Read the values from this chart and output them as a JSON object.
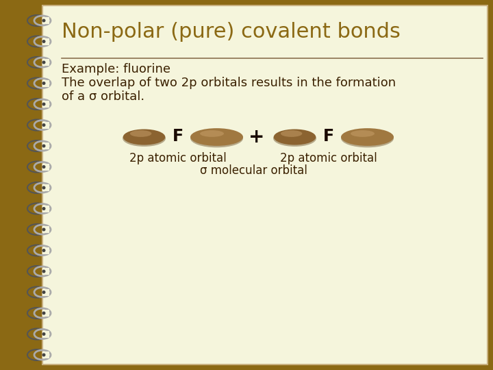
{
  "background_outer": "#8B6914",
  "background_inner": "#F5F5DC",
  "title_text": "Non-polar (pure) covalent bonds",
  "title_color": "#8B6914",
  "title_fontsize": 22,
  "body_color": "#3a2000",
  "line1": "Example: fluorine",
  "line2": "The overlap of two 2p orbitals results in the formation",
  "line3": "of a σ orbital.",
  "label_left": "2p atomic orbital",
  "label_right": "2p atomic orbital",
  "label_bottom": "σ molecular orbital",
  "orbital_color_dark": "#8B6330",
  "orbital_color_mid": "#A07840",
  "orbital_color_light": "#C8A06A",
  "F_label_color": "#1a0a00",
  "plus_color": "#1a0a00",
  "separator_color": "#8B7050",
  "body_fontsize": 13,
  "label_fontsize": 12,
  "spiral_wire": "#aaaaaa",
  "spiral_dark": "#555555"
}
